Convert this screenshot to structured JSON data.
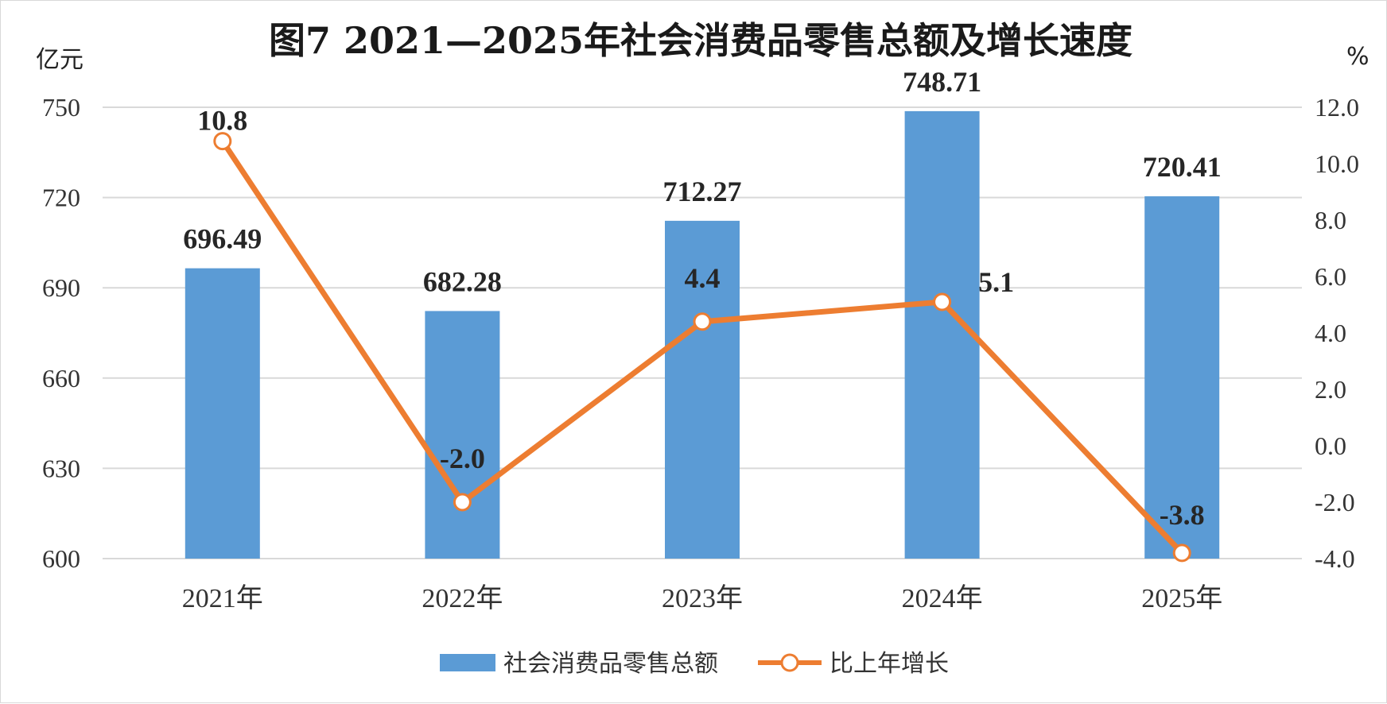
{
  "chart_data": {
    "type": "bar",
    "title": "图7  2021—2025年社会消费品零售总额及增长速度",
    "left_unit": "亿元",
    "right_unit": "%",
    "categories": [
      "2021年",
      "2022年",
      "2023年",
      "2024年",
      "2025年"
    ],
    "series": [
      {
        "name": "社会消费品零售总额",
        "type": "bar",
        "axis": "left",
        "color": "#5b9bd5",
        "values": [
          696.49,
          682.28,
          712.27,
          748.71,
          720.41
        ],
        "labels": [
          "696.49",
          "682.28",
          "712.27",
          "748.71",
          "720.41"
        ]
      },
      {
        "name": "比上年增长",
        "type": "line",
        "axis": "right",
        "color": "#ed7d31",
        "values": [
          10.8,
          -2.0,
          4.4,
          5.1,
          -3.8
        ],
        "labels": [
          "10.8",
          "-2.0",
          "4.4",
          "5.1",
          "-3.8"
        ]
      }
    ],
    "y_left": {
      "min": 600,
      "max": 750,
      "ticks": [
        "750",
        "720",
        "690",
        "660",
        "630",
        "600"
      ]
    },
    "y_right": {
      "min": -4.0,
      "max": 12.0,
      "ticks": [
        "12.0",
        "10.0",
        "8.0",
        "6.0",
        "4.0",
        "2.0",
        "0.0",
        "-2.0",
        "-4.0"
      ]
    },
    "grid": true,
    "legend_position": "bottom"
  }
}
